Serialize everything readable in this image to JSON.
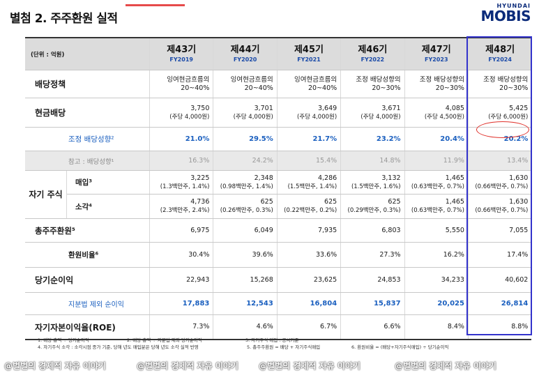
{
  "title": "별첨 2. 주주환원 실적",
  "logo": {
    "line1": "HYUNDAI",
    "line2": "MOBIS"
  },
  "unit": "(단위 : 억원)",
  "periods": [
    {
      "name": "제43기",
      "fy": "FY2019"
    },
    {
      "name": "제44기",
      "fy": "FY2020"
    },
    {
      "name": "제45기",
      "fy": "FY2021"
    },
    {
      "name": "제46기",
      "fy": "FY2022"
    },
    {
      "name": "제47기",
      "fy": "FY2023"
    },
    {
      "name": "제48기",
      "fy": "FY2024"
    }
  ],
  "rows": {
    "policy": {
      "label": "배당정책",
      "values": [
        [
          "잉여현금흐름의",
          "20~40%"
        ],
        [
          "잉여현금흐름의",
          "20~40%"
        ],
        [
          "잉여현금흐름의",
          "20~40%"
        ],
        [
          "조정 배당성향의",
          "20~30%"
        ],
        [
          "조정 배당성향의",
          "20~30%"
        ],
        [
          "조정 배당성향의",
          "20~30%"
        ]
      ]
    },
    "cash": {
      "label": "현금배당",
      "values": [
        [
          "3,750",
          "(주당 4,000원)"
        ],
        [
          "3,701",
          "(주당 4,000원)"
        ],
        [
          "3,649",
          "(주당 4,000원)"
        ],
        [
          "3,671",
          "(주당 4,000원)"
        ],
        [
          "4,085",
          "(주당 4,500원)"
        ],
        [
          "5,425",
          "(주당 6,000원)"
        ]
      ]
    },
    "adj_ratio": {
      "label": "조정 배당성향²",
      "values": [
        "21.0%",
        "29.5%",
        "21.7%",
        "23.2%",
        "20.4%",
        "20.2%"
      ]
    },
    "ref_ratio": {
      "label": "참고 : 배당성향¹",
      "values": [
        "16.3%",
        "24.2%",
        "15.4%",
        "14.8%",
        "11.9%",
        "13.4%"
      ]
    },
    "buyback_group": "자기 주식",
    "buyback": {
      "label": "매입³",
      "values": [
        [
          "3,225",
          "(1.3백만주, 1.4%)"
        ],
        [
          "2,348",
          "(0.98백만주, 1.4%)"
        ],
        [
          "4,286",
          "(1.5백만주, 1.4%)"
        ],
        [
          "3,132",
          "(1.5백만주, 1.6%)"
        ],
        [
          "1,465",
          "(0.63백만주, 0.7%)"
        ],
        [
          "1,630",
          "(0.66백만주, 0.7%)"
        ]
      ]
    },
    "cancel": {
      "label": "소각⁴",
      "values": [
        [
          "4,736",
          "(2.3백만주, 2.4%)"
        ],
        [
          "625",
          "(0.26백만주, 0.3%)"
        ],
        [
          "625",
          "(0.22백만주, 0.2%)"
        ],
        [
          "625",
          "(0.29백만주, 0.3%)"
        ],
        [
          "1,465",
          "(0.63백만주, 0.7%)"
        ],
        [
          "1,630",
          "(0.66백만주, 0.7%)"
        ]
      ]
    },
    "total": {
      "label": "총주주환원⁵",
      "values": [
        "6,975",
        "6,049",
        "7,935",
        "6,803",
        "5,550",
        "7,055"
      ]
    },
    "payout": {
      "label": "환원비율⁶",
      "values": [
        "30.4%",
        "39.6%",
        "33.6%",
        "27.3%",
        "16.2%",
        "17.4%"
      ]
    },
    "net": {
      "label": "당기순이익",
      "values": [
        "22,943",
        "15,268",
        "23,625",
        "24,853",
        "34,233",
        "40,602"
      ]
    },
    "net_ex": {
      "label": "지분법 제외 순이익",
      "values": [
        "17,883",
        "12,543",
        "16,804",
        "15,837",
        "20,025",
        "26,814"
      ]
    },
    "roe": {
      "label": "자기자본이익율(ROE)",
      "values": [
        "7.3%",
        "4.6%",
        "6.7%",
        "6.6%",
        "8.4%",
        "8.8%"
      ]
    }
  },
  "notes": [
    [
      "1. 배당 총액 ÷ 당기순이익",
      "2. 배당 총액 ÷ 지분법 제외 당기순이익",
      "3. 자기주식 매입 : 공시기준",
      ""
    ],
    [
      "4. 자기주식 소각 : 소각시점 종가 기준, 당해 년도 매입분은 당해 년도 소각 실적 반영",
      "",
      "5. 총주주환원 = 배당 + 자기주식매입",
      "6. 환원비율 = (배당+자기주식매입) ÷ 당기순이익"
    ]
  ],
  "watermark": [
    "@벌벌의 경제적 자유 이야기",
    "@벌벌의 경제적 자유 이야기",
    "@벌벌의 경제적 자유 이야기",
    "@벌벌의 경제적 자유 이야기"
  ],
  "colors": {
    "accent_blue": "#1a5fbf",
    "highlight_box": "#3333cc",
    "circle_red": "#e0302a",
    "brand": "#0b2b7a"
  }
}
